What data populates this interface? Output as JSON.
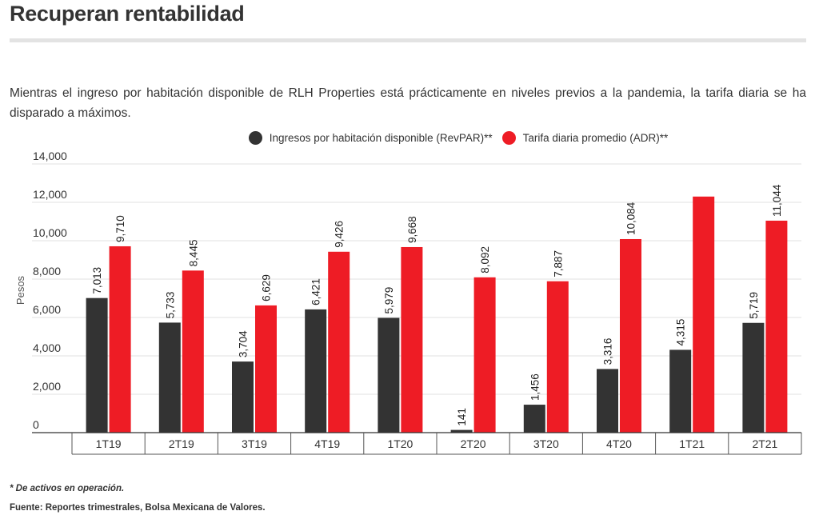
{
  "header": {
    "title": "Recuperan rentabilidad",
    "subtitle": "Mientras el ingreso por habitación disponible de RLH Properties está prácticamente en niveles previos a la pandemia, la tarifa diaria se ha disparado a máximos."
  },
  "footer": {
    "note": "* De activos en operación.",
    "source": "Fuente: Reportes trimestrales, Bolsa Mexicana de Valores."
  },
  "colors": {
    "revpar": "#333333",
    "adr": "#ee1c25",
    "grid": "#e0e0e0",
    "axis": "#333333"
  },
  "chart_data": {
    "type": "bar",
    "ylabel": "Pesos",
    "xlabel": "",
    "ylim": [
      0,
      14000
    ],
    "yticks": [
      0,
      2000,
      4000,
      6000,
      8000,
      10000,
      12000,
      14000
    ],
    "ytick_labels": [
      "0",
      "2,000",
      "4,000",
      "6,000",
      "8,000",
      "10,000",
      "12,000",
      "14,000"
    ],
    "grid": true,
    "legend_position": "top-center",
    "categories": [
      "1T19",
      "2T19",
      "3T19",
      "4T19",
      "1T20",
      "2T20",
      "3T20",
      "4T20",
      "1T21",
      "2T21"
    ],
    "series": [
      {
        "name": "Ingresos por habitación disponible (RevPAR)**",
        "color": "#333333",
        "values": [
          7013,
          5733,
          3704,
          6421,
          5979,
          141,
          1456,
          3316,
          4315,
          5719
        ],
        "labels": [
          "7,013",
          "5,733",
          "3,704",
          "6,421",
          "5,979",
          "141",
          "1,456",
          "3,316",
          "4,315",
          "5,719"
        ]
      },
      {
        "name": "Tarifa diaria promedio (ADR)**",
        "color": "#ee1c25",
        "values": [
          9710,
          8445,
          6629,
          9426,
          9668,
          8092,
          7887,
          10084,
          12300,
          11044
        ],
        "labels": [
          "9,710",
          "8,445",
          "6,629",
          "9,426",
          "9,668",
          "8,092",
          "7,887",
          "10,084",
          "",
          "11,044"
        ]
      }
    ]
  }
}
